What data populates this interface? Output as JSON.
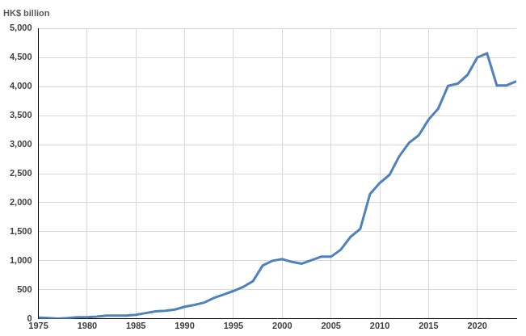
{
  "chart_data": {
    "type": "line",
    "ylabel": "HK$ billion",
    "x": [
      1975,
      1976,
      1977,
      1978,
      1979,
      1980,
      1981,
      1982,
      1983,
      1984,
      1985,
      1986,
      1987,
      1988,
      1989,
      1990,
      1991,
      1992,
      1993,
      1994,
      1995,
      1996,
      1997,
      1998,
      1999,
      2000,
      2001,
      2002,
      2003,
      2004,
      2005,
      2006,
      2007,
      2008,
      2009,
      2010,
      2011,
      2012,
      2013,
      2014,
      2015,
      2016,
      2017,
      2018,
      2019,
      2020,
      2021,
      2022,
      2023,
      2024
    ],
    "values": [
      20,
      15,
      5,
      15,
      30,
      30,
      40,
      55,
      55,
      55,
      70,
      100,
      130,
      140,
      160,
      210,
      240,
      280,
      360,
      420,
      480,
      550,
      650,
      920,
      1000,
      1030,
      980,
      950,
      1010,
      1070,
      1070,
      1190,
      1410,
      1550,
      2150,
      2340,
      2480,
      2800,
      3030,
      3160,
      3430,
      3620,
      4010,
      4050,
      4200,
      4500,
      4570,
      4020,
      4020,
      4090
    ],
    "color": "#4f81bd",
    "xlim": [
      1975,
      2024
    ],
    "xticks": [
      1975,
      1980,
      1985,
      1990,
      1995,
      2000,
      2005,
      2010,
      2015,
      2020
    ],
    "ylim": [
      0,
      5000
    ],
    "yticks": [
      0,
      500,
      {
        "value": 1000,
        "label": "1,000"
      },
      {
        "value": 1500,
        "label": "1,500"
      },
      {
        "value": 2000,
        "label": "2,000"
      },
      {
        "value": 2500,
        "label": "2,500"
      },
      {
        "value": 3000,
        "label": "3,000"
      },
      {
        "value": 3500,
        "label": "3,500"
      },
      {
        "value": 4000,
        "label": "4,000"
      },
      {
        "value": 4500,
        "label": "4,500"
      },
      {
        "value": 5000,
        "label": "5,000"
      }
    ],
    "grid": true
  }
}
